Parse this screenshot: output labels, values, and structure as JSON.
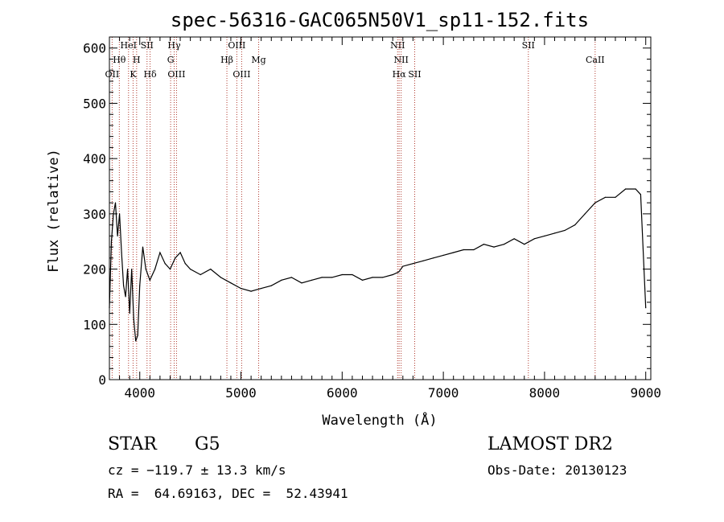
{
  "chart_data": {
    "type": "line",
    "title": "spec-56316-GAC065N50V1_sp11-152.fits",
    "xlabel": "Wavelength (Å)",
    "ylabel": "Flux (relative)",
    "xlim": [
      3700,
      9050
    ],
    "ylim": [
      0,
      620
    ],
    "xticks": [
      4000,
      5000,
      6000,
      7000,
      8000,
      9000
    ],
    "xtick_labels": [
      "4000",
      "5000",
      "6000",
      "7000",
      "8000",
      "9000"
    ],
    "yticks": [
      0,
      100,
      200,
      300,
      400,
      500,
      600
    ],
    "ytick_labels": [
      "0",
      "100",
      "200",
      "300",
      "400",
      "500",
      "600"
    ],
    "grid": false,
    "line_color": "#000000",
    "marker_color": "#b03a2e",
    "lines": [
      {
        "label": "HeI",
        "wavelength": 3889,
        "row": 0
      },
      {
        "label": "Hθ",
        "wavelength": 3798,
        "row": 1
      },
      {
        "label": "OII",
        "wavelength": 3727,
        "row": 2
      },
      {
        "label": "SII",
        "wavelength": 4072,
        "row": 0
      },
      {
        "label": "H",
        "wavelength": 3969,
        "row": 1
      },
      {
        "label": "K",
        "wavelength": 3934,
        "row": 2
      },
      {
        "label": "Hδ",
        "wavelength": 4102,
        "row": 2
      },
      {
        "label": "Hγ",
        "wavelength": 4340,
        "row": 0
      },
      {
        "label": "G",
        "wavelength": 4305,
        "row": 1
      },
      {
        "label": "OIII",
        "wavelength": 4363,
        "row": 2
      },
      {
        "label": "OIII",
        "wavelength": 4959,
        "row": 0
      },
      {
        "label": "Hβ",
        "wavelength": 4861,
        "row": 1
      },
      {
        "label": "Mg",
        "wavelength": 5175,
        "row": 1
      },
      {
        "label": "OIII",
        "wavelength": 5007,
        "row": 2
      },
      {
        "label": "NII",
        "wavelength": 6548,
        "row": 0
      },
      {
        "label": "NII",
        "wavelength": 6583,
        "row": 1
      },
      {
        "label": "Hα",
        "wavelength": 6563,
        "row": 2
      },
      {
        "label": "SII",
        "wavelength": 6717,
        "row": 2
      },
      {
        "label": "SII",
        "wavelength": 7840,
        "row": 0
      },
      {
        "label": "CaII",
        "wavelength": 8500,
        "row": 1
      }
    ],
    "series": [
      {
        "x": [
          3700,
          3720,
          3740,
          3760,
          3780,
          3800,
          3820,
          3840,
          3860,
          3880,
          3900,
          3920,
          3940,
          3960,
          3980,
          4000,
          4030,
          4060,
          4100,
          4150,
          4200,
          4250,
          4300,
          4350,
          4400,
          4450,
          4500,
          4600,
          4700,
          4800,
          4900,
          5000,
          5100,
          5200,
          5300,
          5400,
          5500,
          5600,
          5700,
          5800,
          5900,
          6000,
          6100,
          6200,
          6300,
          6400,
          6500,
          6560,
          6600,
          6700,
          6800,
          6900,
          7000,
          7100,
          7200,
          7300,
          7400,
          7500,
          7600,
          7700,
          7800,
          7900,
          8000,
          8100,
          8200,
          8300,
          8400,
          8500,
          8600,
          8700,
          8800,
          8900,
          8950,
          9000
        ],
        "y": [
          130,
          250,
          300,
          320,
          260,
          300,
          230,
          170,
          150,
          200,
          120,
          200,
          110,
          70,
          80,
          170,
          240,
          200,
          180,
          200,
          230,
          210,
          200,
          220,
          230,
          210,
          200,
          190,
          200,
          185,
          175,
          165,
          160,
          165,
          170,
          180,
          185,
          175,
          180,
          185,
          185,
          190,
          190,
          180,
          185,
          185,
          190,
          195,
          205,
          210,
          215,
          220,
          225,
          230,
          235,
          235,
          245,
          240,
          245,
          255,
          245,
          255,
          260,
          265,
          270,
          280,
          300,
          320,
          330,
          330,
          345,
          345,
          335,
          130
        ]
      }
    ]
  },
  "info": {
    "object_class": "STAR",
    "subclass": "G5",
    "survey": "LAMOST DR2",
    "cz": "cz = −119.7 ± 13.3 km/s",
    "obs_date": "Obs-Date: 20130123",
    "coords": "RA =  64.69163, DEC =  52.43941"
  }
}
